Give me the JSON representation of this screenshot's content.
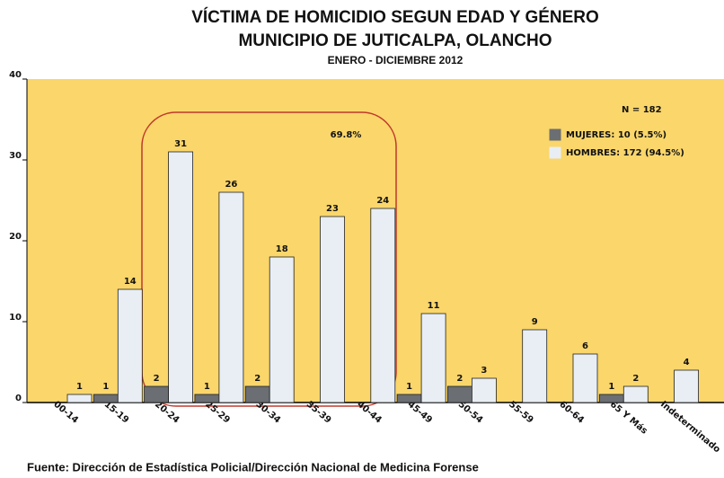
{
  "chart_data": {
    "type": "bar",
    "title": "VÍCTIMA DE HOMICIDIO SEGUN EDAD Y GÉNERO",
    "subtitle": "MUNICIPIO DE JUTICALPA, OLANCHO",
    "period": "ENERO - DICIEMBRE 2012",
    "annotations": [
      "N = 182",
      "69.8%"
    ],
    "source": "Fuente: Dirección de Estadística Policial/Dirección Nacional de Medicina Forense",
    "categories": [
      "00-14",
      "15-19",
      "20-24",
      "25-29",
      "30-34",
      "35-39",
      "40-44",
      "45-49",
      "50-54",
      "55-59",
      "60-64",
      "65 Y Más",
      "Indeterminado"
    ],
    "series": [
      {
        "name": "MUJERES: 10 (5.5%)",
        "color": "#6b6e72",
        "values": [
          null,
          1,
          2,
          1,
          2,
          null,
          null,
          1,
          2,
          null,
          null,
          1,
          null
        ]
      },
      {
        "name": "HOMBRES: 172 (94.5%)",
        "color": "#e8eef4",
        "values": [
          1,
          14,
          31,
          26,
          18,
          23,
          24,
          11,
          3,
          9,
          6,
          2,
          4
        ]
      }
    ],
    "ylim": [
      0,
      40
    ],
    "yticks": [
      0,
      10,
      20,
      30,
      40
    ],
    "background": "#fad66b",
    "legend": "upper right"
  }
}
